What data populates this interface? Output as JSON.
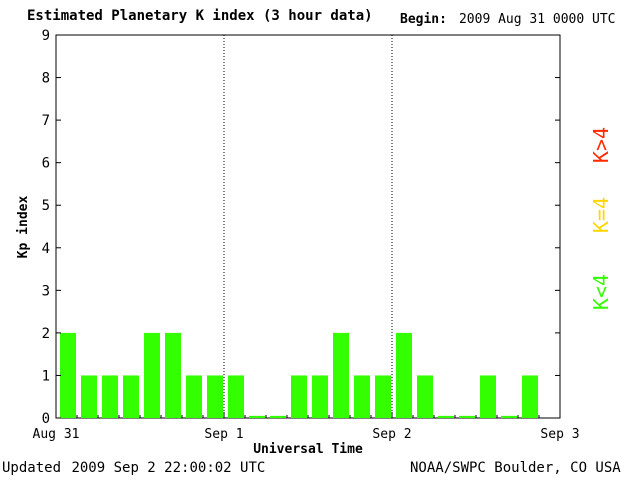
{
  "header": {
    "title": "Estimated Planetary K index (3 hour data)",
    "begin_label": "Begin:",
    "begin_value": "2009 Aug 31 0000 UTC"
  },
  "footer": {
    "updated_label": "Updated",
    "updated_value": "2009 Sep  2 22:00:02 UTC",
    "credit": "NOAA/SWPC Boulder, CO USA"
  },
  "legend": [
    {
      "label": "K>4",
      "color": "#ff2a00"
    },
    {
      "label": "K=4",
      "color": "#ffd700"
    },
    {
      "label": "K<4",
      "color": "#33ff00"
    }
  ],
  "chart_data": {
    "type": "bar",
    "title": "Estimated Planetary K index (3 hour data)",
    "xlabel": "Universal Time",
    "ylabel": "Kp index",
    "ylim": [
      0,
      9
    ],
    "yticks": [
      0,
      1,
      2,
      3,
      4,
      5,
      6,
      7,
      8,
      9
    ],
    "xticks": [
      "Aug 31",
      "Sep 1",
      "Sep 2",
      "Sep 3"
    ],
    "day_dividers": [
      "Sep 1",
      "Sep 2"
    ],
    "interval_hours": 3,
    "series": [
      {
        "values": [
          2,
          1,
          1,
          1,
          2,
          2,
          1,
          1,
          1,
          0.05,
          0.05,
          1,
          1,
          2,
          1,
          1,
          2,
          1,
          0.05,
          0.05,
          1,
          0.05,
          1
        ],
        "color": "#33ff00"
      }
    ]
  }
}
